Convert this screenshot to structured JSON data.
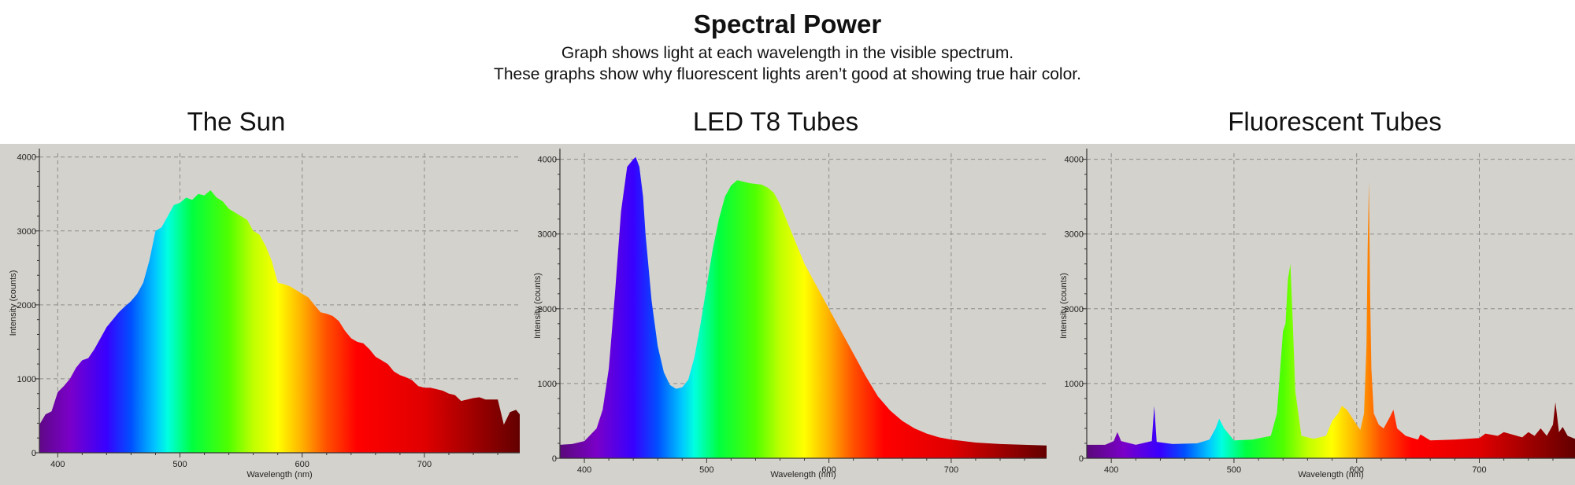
{
  "header": {
    "title": "Spectral Power",
    "subtitle_line1": "Graph shows light at each wavelength in the visible spectrum.",
    "subtitle_line2": "These graphs show why fluorescent lights aren’t good at showing true hair color."
  },
  "colors": {
    "plot_background": "#d4d2cc",
    "grid": "#8c8c8c",
    "axis": "#333333"
  },
  "chart_data": [
    {
      "type": "area",
      "title": "The Sun",
      "xlabel": "Wavelength (nm)",
      "ylabel": "Intensity (counts)",
      "xlim": [
        385,
        778
      ],
      "ylim": [
        0,
        4050
      ],
      "x_ticks": [
        400,
        500,
        600,
        700
      ],
      "y_ticks": [
        0,
        1000,
        2000,
        3000,
        4000
      ],
      "fill": "spectrum",
      "grid": true,
      "x": [
        385,
        390,
        395,
        400,
        405,
        410,
        415,
        420,
        425,
        430,
        435,
        440,
        445,
        450,
        455,
        460,
        465,
        470,
        475,
        480,
        485,
        490,
        495,
        500,
        505,
        510,
        515,
        520,
        525,
        530,
        535,
        540,
        545,
        550,
        555,
        560,
        565,
        570,
        575,
        580,
        585,
        590,
        595,
        600,
        605,
        610,
        615,
        620,
        625,
        630,
        635,
        640,
        645,
        650,
        655,
        660,
        665,
        670,
        675,
        680,
        685,
        690,
        695,
        700,
        705,
        710,
        715,
        720,
        725,
        730,
        735,
        740,
        745,
        750,
        755,
        760,
        765,
        770,
        775,
        778
      ],
      "y": [
        380,
        520,
        560,
        820,
        900,
        1000,
        1150,
        1250,
        1280,
        1400,
        1550,
        1700,
        1800,
        1900,
        1980,
        2050,
        2150,
        2300,
        2600,
        3000,
        3050,
        3200,
        3350,
        3380,
        3450,
        3420,
        3500,
        3480,
        3550,
        3450,
        3400,
        3300,
        3250,
        3200,
        3150,
        3000,
        2950,
        2800,
        2600,
        2300,
        2280,
        2250,
        2200,
        2150,
        2100,
        2000,
        1900,
        1880,
        1850,
        1780,
        1650,
        1550,
        1500,
        1480,
        1400,
        1300,
        1250,
        1200,
        1100,
        1050,
        1020,
        980,
        900,
        880,
        880,
        860,
        840,
        800,
        780,
        700,
        720,
        740,
        750,
        720,
        720,
        720,
        380,
        550,
        580,
        520
      ]
    },
    {
      "type": "area",
      "title": "LED T8 Tubes",
      "xlabel": "Wavelength (nm)",
      "ylabel": "Intensity (counts)",
      "xlim": [
        380,
        778
      ],
      "ylim": [
        0,
        4080
      ],
      "x_ticks": [
        400,
        500,
        600,
        700
      ],
      "y_ticks": [
        0,
        1000,
        2000,
        3000,
        4000
      ],
      "fill": "spectrum",
      "grid": true,
      "x": [
        380,
        390,
        400,
        410,
        415,
        420,
        425,
        430,
        435,
        440,
        442,
        445,
        448,
        450,
        455,
        460,
        465,
        470,
        475,
        480,
        485,
        490,
        495,
        500,
        505,
        510,
        515,
        520,
        525,
        530,
        535,
        540,
        545,
        550,
        555,
        560,
        565,
        570,
        575,
        580,
        590,
        600,
        610,
        620,
        630,
        640,
        650,
        660,
        670,
        680,
        690,
        700,
        710,
        720,
        740,
        760,
        778
      ],
      "y": [
        180,
        190,
        230,
        400,
        650,
        1200,
        2200,
        3300,
        3900,
        4000,
        4030,
        3900,
        3500,
        3000,
        2100,
        1500,
        1150,
        980,
        930,
        950,
        1050,
        1350,
        1800,
        2300,
        2800,
        3200,
        3500,
        3650,
        3720,
        3700,
        3680,
        3670,
        3660,
        3620,
        3550,
        3400,
        3200,
        3000,
        2800,
        2600,
        2300,
        2000,
        1700,
        1400,
        1100,
        830,
        640,
        500,
        400,
        330,
        280,
        250,
        230,
        210,
        190,
        180,
        170
      ]
    },
    {
      "type": "area",
      "title": "Fluorescent Tubes",
      "xlabel": "Wavelength (nm)",
      "ylabel": "Intensity (counts)",
      "xlim": [
        380,
        778
      ],
      "ylim": [
        0,
        4080
      ],
      "x_ticks": [
        400,
        500,
        600,
        700
      ],
      "y_ticks": [
        0,
        1000,
        2000,
        3000,
        4000
      ],
      "fill": "spectrum",
      "grid": true,
      "x": [
        380,
        395,
        402,
        405,
        408,
        420,
        433,
        435,
        437,
        450,
        470,
        480,
        485,
        488,
        492,
        500,
        515,
        530,
        535,
        540,
        542,
        544,
        546,
        548,
        550,
        555,
        565,
        575,
        580,
        585,
        588,
        592,
        596,
        600,
        603,
        606,
        608,
        609,
        610,
        611,
        612,
        614,
        618,
        622,
        627,
        630,
        633,
        640,
        650,
        652,
        660,
        680,
        700,
        705,
        715,
        720,
        735,
        740,
        745,
        750,
        755,
        760,
        762,
        765,
        768,
        772,
        778
      ],
      "y": [
        180,
        180,
        230,
        350,
        230,
        180,
        230,
        700,
        220,
        190,
        200,
        250,
        400,
        530,
        400,
        240,
        250,
        300,
        600,
        1700,
        1800,
        2400,
        2600,
        1800,
        900,
        300,
        260,
        300,
        500,
        600,
        700,
        650,
        550,
        450,
        380,
        600,
        1500,
        2800,
        3700,
        2200,
        1200,
        600,
        450,
        400,
        550,
        650,
        400,
        300,
        250,
        320,
        240,
        250,
        270,
        330,
        300,
        350,
        280,
        350,
        300,
        400,
        300,
        450,
        750,
        350,
        420,
        300,
        260
      ]
    }
  ]
}
